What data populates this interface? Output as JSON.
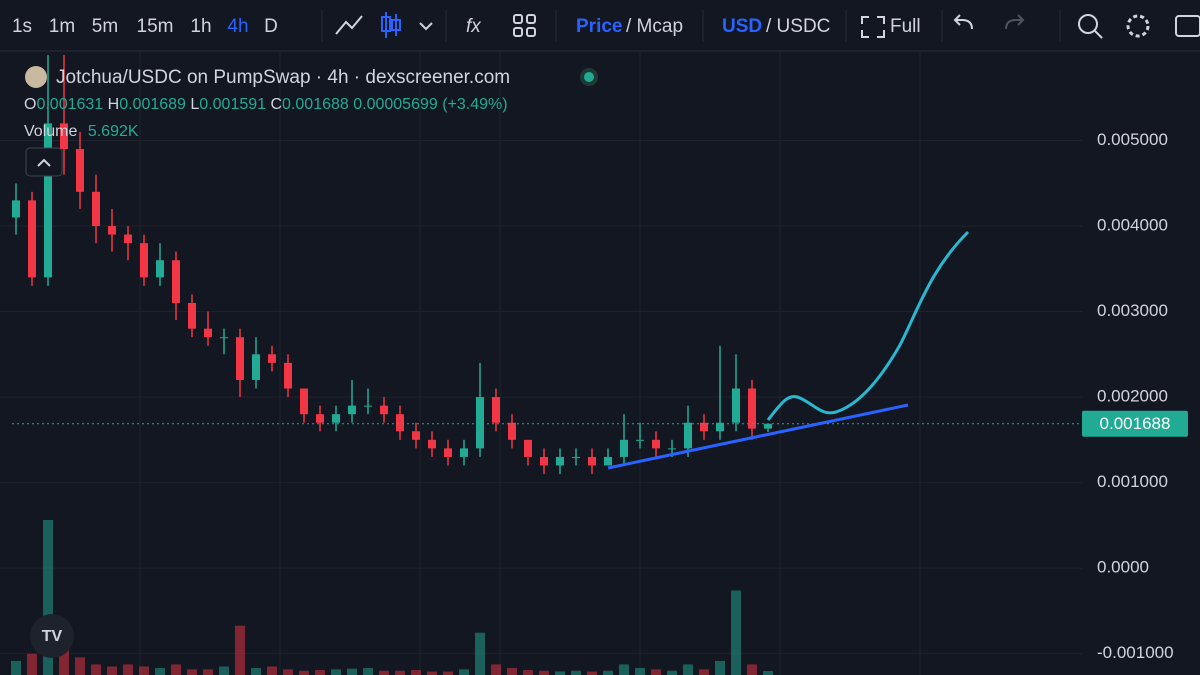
{
  "toolbar": {
    "intervals": [
      "1s",
      "1m",
      "5m",
      "15m",
      "1h",
      "4h",
      "D"
    ],
    "price": "Price",
    "mcap": "/ Mcap",
    "usd": "USD",
    "usdc": "/ USDC",
    "full": "Full"
  },
  "chart_data": {
    "type": "candlestick",
    "title": "Jotchua/USDC on PumpSwap · 4h · dexscreener.com",
    "legend_keys": [
      "O",
      "H",
      "L",
      "C"
    ],
    "change": 5.699e-05,
    "change_pct": {
      "value": 3.49,
      "label": "(+3.49%)"
    },
    "volume_title": "Volume",
    "volume_label": "5.692K",
    "up_color": "#22ab94",
    "down_color": "#f23645",
    "open": [
      0.0041,
      0.0043,
      0.0034,
      0.0052,
      0.0049,
      0.0044,
      0.004,
      0.0039,
      0.0038,
      0.0034,
      0.0036,
      0.0031,
      0.0028,
      0.0027,
      0.0027,
      0.0022,
      0.0025,
      0.0024,
      0.0021,
      0.0018,
      0.0017,
      0.0018,
      0.0019,
      0.0019,
      0.0018,
      0.0016,
      0.0015,
      0.0014,
      0.0013,
      0.0014,
      0.002,
      0.0017,
      0.0015,
      0.0013,
      0.0012,
      0.0013,
      0.0013,
      0.0012,
      0.0013,
      0.0015,
      0.0015,
      0.0014,
      0.0014,
      0.0017,
      0.0016,
      0.0017,
      0.0021,
      0.001631
    ],
    "high": [
      0.0045,
      0.0044,
      0.006,
      0.006,
      0.0051,
      0.0046,
      0.0042,
      0.004,
      0.0039,
      0.0038,
      0.0037,
      0.0032,
      0.003,
      0.0028,
      0.0028,
      0.0027,
      0.0026,
      0.0025,
      0.0021,
      0.0019,
      0.0019,
      0.0022,
      0.0021,
      0.002,
      0.0019,
      0.0017,
      0.0016,
      0.0015,
      0.0015,
      0.0024,
      0.0021,
      0.0018,
      0.0015,
      0.0014,
      0.0014,
      0.0014,
      0.0014,
      0.0014,
      0.0018,
      0.0017,
      0.0016,
      0.0015,
      0.0019,
      0.0018,
      0.0026,
      0.0025,
      0.0022,
      0.001689
    ],
    "low": [
      0.0039,
      0.0033,
      0.0033,
      0.0046,
      0.0042,
      0.0038,
      0.0037,
      0.0036,
      0.0033,
      0.0033,
      0.0029,
      0.0027,
      0.0026,
      0.0025,
      0.002,
      0.0021,
      0.0023,
      0.002,
      0.0017,
      0.0016,
      0.0016,
      0.0017,
      0.0018,
      0.0017,
      0.0015,
      0.0014,
      0.0013,
      0.0012,
      0.0012,
      0.0013,
      0.0016,
      0.0014,
      0.0012,
      0.0011,
      0.0011,
      0.0012,
      0.0011,
      0.0012,
      0.0012,
      0.0014,
      0.0013,
      0.0013,
      0.0013,
      0.0015,
      0.0015,
      0.0016,
      0.0015,
      0.001591
    ],
    "close": [
      0.0043,
      0.0034,
      0.0052,
      0.0049,
      0.0044,
      0.004,
      0.0039,
      0.0038,
      0.0034,
      0.0036,
      0.0031,
      0.0028,
      0.0027,
      0.0027,
      0.0022,
      0.0025,
      0.0024,
      0.0021,
      0.0018,
      0.0017,
      0.0018,
      0.0019,
      0.0019,
      0.0018,
      0.0016,
      0.0015,
      0.0014,
      0.0013,
      0.0014,
      0.002,
      0.0017,
      0.0015,
      0.0013,
      0.0012,
      0.0013,
      0.0013,
      0.0012,
      0.0013,
      0.0015,
      0.0015,
      0.0014,
      0.0014,
      0.0017,
      0.0016,
      0.0017,
      0.0021,
      0.001631,
      0.001688
    ],
    "volume": [
      20000,
      30000,
      220000,
      60000,
      25000,
      15000,
      12000,
      15000,
      12000,
      10000,
      15000,
      8000,
      8000,
      12000,
      70000,
      10000,
      12000,
      8000,
      6000,
      7000,
      8000,
      9000,
      10000,
      6000,
      6000,
      7000,
      5000,
      5000,
      8000,
      60000,
      15000,
      10000,
      7000,
      6000,
      5000,
      6000,
      5000,
      6000,
      15000,
      10000,
      8000,
      6000,
      15000,
      8000,
      20000,
      120000,
      15000,
      5692
    ],
    "ylim": [
      -0.00125,
      0.006035
    ],
    "yticks": [
      {
        "value": 0.005,
        "label": "0.005000"
      },
      {
        "value": 0.004,
        "label": "0.004000"
      },
      {
        "value": 0.003,
        "label": "0.003000"
      },
      {
        "value": 0.002,
        "label": "0.002000"
      },
      {
        "value": 0.001,
        "label": "0.001000"
      },
      {
        "value": 0,
        "label": "0.0000"
      },
      {
        "value": -0.001,
        "label": "-0.001000"
      }
    ],
    "grid": true
  }
}
